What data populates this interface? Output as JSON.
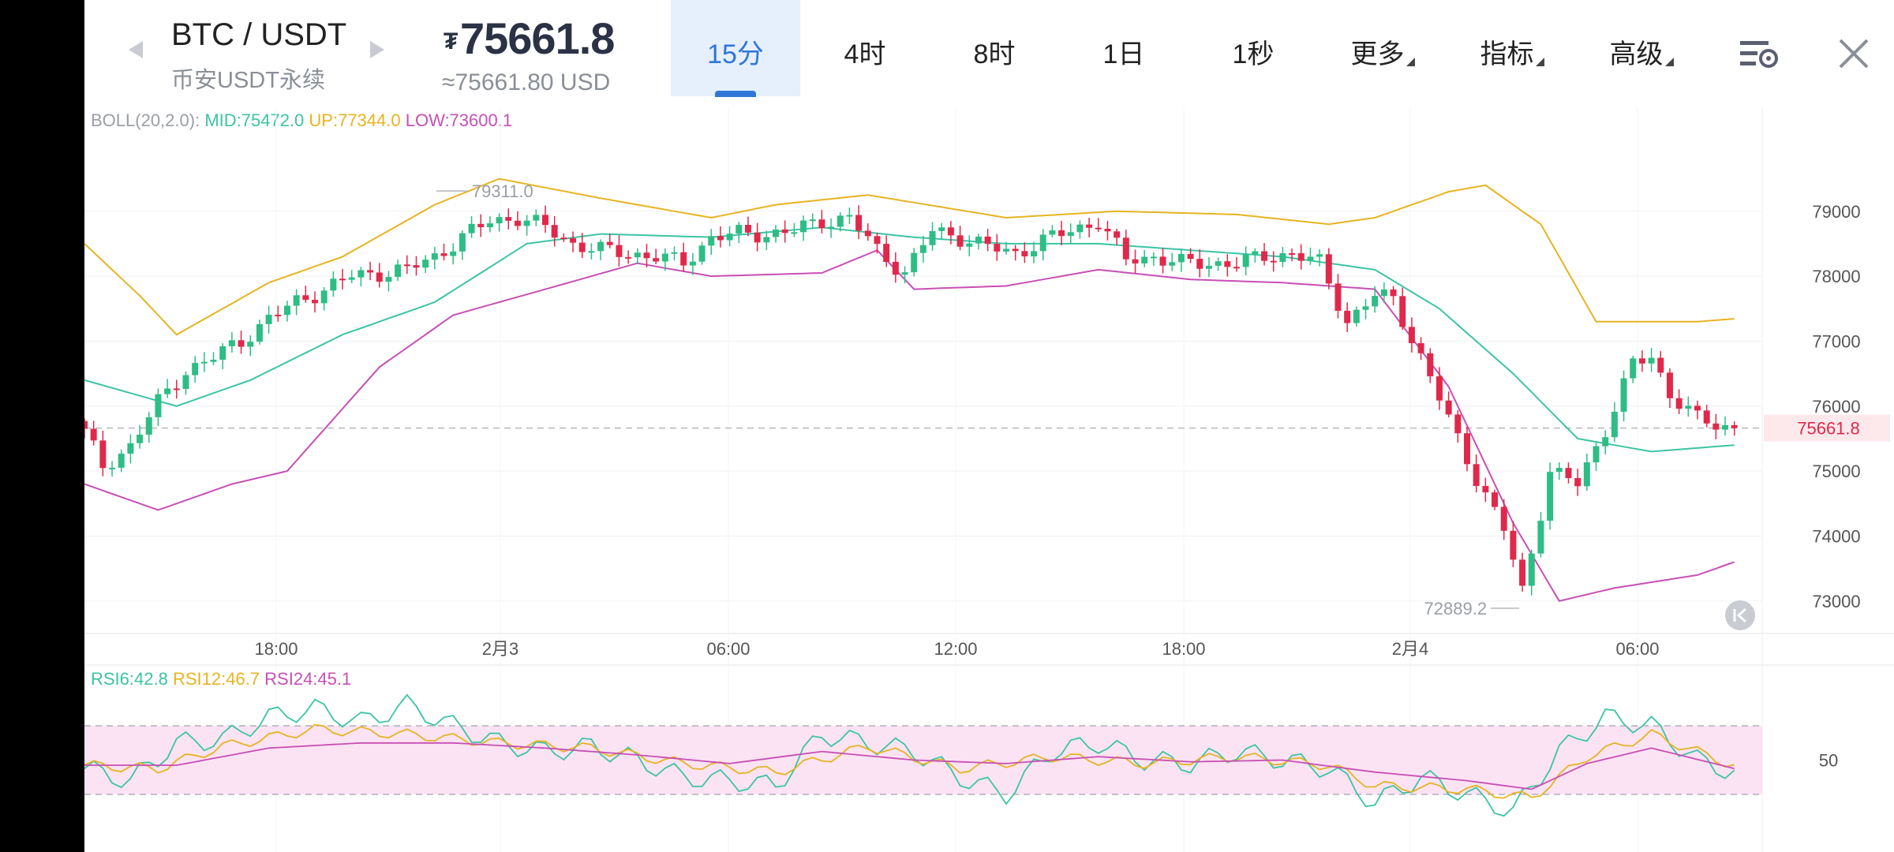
{
  "header": {
    "symbol": "BTC / USDT",
    "subtitle": "币安USDT永续",
    "price_symbol": "₮",
    "price": "75661.8",
    "price_usd": "≈75661.80 USD"
  },
  "tabs": [
    {
      "label": "15分",
      "active": true
    },
    {
      "label": "4时",
      "active": false
    },
    {
      "label": "8时",
      "active": false
    },
    {
      "label": "1日",
      "active": false
    },
    {
      "label": "1秒",
      "active": false
    },
    {
      "label": "更多",
      "active": false,
      "dropdown": true
    },
    {
      "label": "指标",
      "active": false,
      "dropdown": true
    },
    {
      "label": "高级",
      "active": false,
      "dropdown": true
    }
  ],
  "icons": {
    "settings": "chart-settings-icon",
    "close": "close-icon",
    "scroll_latest": "scroll-to-latest-icon"
  },
  "colors": {
    "up": "#2ebd85",
    "down": "#e0294a",
    "mid": "#3cc4a4",
    "upper": "#e6b422",
    "lower": "#c84fb5",
    "accent": "#2f76d8"
  },
  "legends": {
    "boll": {
      "name": "BOLL(20,2.0):",
      "mid": "MID:75472.0",
      "up": "UP:77344.0",
      "low": "LOW:73600.1"
    },
    "rsi": {
      "r6": "RSI6:42.8",
      "r12": "RSI12:46.7",
      "r24": "RSI24:45.1"
    }
  },
  "chart_data": [
    {
      "type": "candlestick",
      "title": "",
      "interval": "15m",
      "ylim": [
        72500,
        80600
      ],
      "y_ticks": [
        "79000",
        "78000",
        "77000",
        "76000",
        "75000",
        "74000",
        "73000"
      ],
      "x_ticks": [
        "18:00",
        "2月3",
        "06:00",
        "12:00",
        "18:00",
        "2月4",
        "06:00"
      ],
      "last_price": "75661.8",
      "annotations": {
        "high": "79311.0",
        "low": "72889.2"
      },
      "close_anchors": [
        [
          0,
          75600
        ],
        [
          2,
          75050
        ],
        [
          5,
          75400
        ],
        [
          8,
          76050
        ],
        [
          11,
          76550
        ],
        [
          14,
          76750
        ],
        [
          17,
          77000
        ],
        [
          20,
          77350
        ],
        [
          23,
          77600
        ],
        [
          26,
          77800
        ],
        [
          29,
          78000
        ],
        [
          32,
          78050
        ],
        [
          35,
          78100
        ],
        [
          38,
          78300
        ],
        [
          41,
          78600
        ],
        [
          44,
          78850
        ],
        [
          47,
          78900
        ],
        [
          50,
          78750
        ],
        [
          53,
          78500
        ],
        [
          56,
          78400
        ],
        [
          59,
          78350
        ],
        [
          62,
          78300
        ],
        [
          65,
          78200
        ],
        [
          68,
          78600
        ],
        [
          71,
          78650
        ],
        [
          74,
          78650
        ],
        [
          77,
          78700
        ],
        [
          80,
          78850
        ],
        [
          83,
          78900
        ],
        [
          86,
          78400
        ],
        [
          89,
          78050
        ],
        [
          92,
          78700
        ],
        [
          95,
          78600
        ],
        [
          98,
          78450
        ],
        [
          101,
          78350
        ],
        [
          104,
          78550
        ],
        [
          107,
          78700
        ],
        [
          110,
          78850
        ],
        [
          113,
          78250
        ],
        [
          116,
          78300
        ],
        [
          119,
          78200
        ],
        [
          122,
          78200
        ],
        [
          125,
          78200
        ],
        [
          128,
          78300
        ],
        [
          131,
          78350
        ],
        [
          134,
          78200
        ],
        [
          137,
          77300
        ],
        [
          140,
          77700
        ],
        [
          142,
          77650
        ],
        [
          145,
          76750
        ],
        [
          148,
          75800
        ],
        [
          151,
          74900
        ],
        [
          154,
          74100
        ],
        [
          156,
          73150
        ],
        [
          159,
          75000
        ],
        [
          162,
          74800
        ],
        [
          165,
          75650
        ],
        [
          168,
          76650
        ],
        [
          170,
          76750
        ],
        [
          172,
          76200
        ],
        [
          175,
          75800
        ],
        [
          177,
          75700
        ],
        [
          179,
          75661.8
        ]
      ],
      "boll_anchors": {
        "mid": [
          [
            0,
            76400
          ],
          [
            10,
            76000
          ],
          [
            18,
            76400
          ],
          [
            28,
            77100
          ],
          [
            38,
            77600
          ],
          [
            48,
            78500
          ],
          [
            56,
            78650
          ],
          [
            68,
            78600
          ],
          [
            80,
            78750
          ],
          [
            90,
            78600
          ],
          [
            100,
            78500
          ],
          [
            110,
            78500
          ],
          [
            120,
            78400
          ],
          [
            130,
            78300
          ],
          [
            140,
            78100
          ],
          [
            147,
            77500
          ],
          [
            155,
            76500
          ],
          [
            162,
            75500
          ],
          [
            170,
            75300
          ],
          [
            179,
            75400
          ]
        ],
        "upper": [
          [
            0,
            78500
          ],
          [
            6,
            77700
          ],
          [
            10,
            77100
          ],
          [
            20,
            77900
          ],
          [
            28,
            78300
          ],
          [
            38,
            79100
          ],
          [
            45,
            79500
          ],
          [
            56,
            79200
          ],
          [
            68,
            78900
          ],
          [
            75,
            79100
          ],
          [
            85,
            79250
          ],
          [
            100,
            78900
          ],
          [
            112,
            79000
          ],
          [
            125,
            78950
          ],
          [
            135,
            78800
          ],
          [
            140,
            78900
          ],
          [
            148,
            79300
          ],
          [
            152,
            79400
          ],
          [
            158,
            78800
          ],
          [
            164,
            77300
          ],
          [
            175,
            77300
          ],
          [
            179,
            77344
          ]
        ],
        "lower": [
          [
            0,
            74800
          ],
          [
            8,
            74400
          ],
          [
            16,
            74800
          ],
          [
            22,
            75000
          ],
          [
            32,
            76600
          ],
          [
            40,
            77400
          ],
          [
            50,
            77800
          ],
          [
            60,
            78200
          ],
          [
            68,
            78000
          ],
          [
            80,
            78050
          ],
          [
            86,
            78400
          ],
          [
            90,
            77800
          ],
          [
            100,
            77850
          ],
          [
            110,
            78100
          ],
          [
            120,
            77950
          ],
          [
            130,
            77900
          ],
          [
            140,
            77800
          ],
          [
            148,
            76300
          ],
          [
            155,
            74200
          ],
          [
            160,
            73000
          ],
          [
            166,
            73200
          ],
          [
            175,
            73400
          ],
          [
            179,
            73600
          ]
        ]
      }
    },
    {
      "type": "line",
      "title": "",
      "ylim": [
        0,
        100
      ],
      "y_ticks": [
        "50"
      ],
      "band": [
        30,
        70
      ],
      "series": [
        {
          "name": "RSI6",
          "anchors": [
            [
              0,
              45
            ],
            [
              5,
              38
            ],
            [
              10,
              60
            ],
            [
              15,
              62
            ],
            [
              20,
              75
            ],
            [
              25,
              80
            ],
            [
              30,
              72
            ],
            [
              35,
              82
            ],
            [
              40,
              70
            ],
            [
              45,
              60
            ],
            [
              50,
              55
            ],
            [
              55,
              58
            ],
            [
              60,
              50
            ],
            [
              65,
              40
            ],
            [
              70,
              38
            ],
            [
              75,
              35
            ],
            [
              80,
              65
            ],
            [
              85,
              60
            ],
            [
              90,
              55
            ],
            [
              95,
              40
            ],
            [
              100,
              30
            ],
            [
              105,
              55
            ],
            [
              110,
              60
            ],
            [
              115,
              50
            ],
            [
              120,
              48
            ],
            [
              125,
              55
            ],
            [
              130,
              50
            ],
            [
              135,
              45
            ],
            [
              140,
              25
            ],
            [
              145,
              40
            ],
            [
              150,
              30
            ],
            [
              155,
              20
            ],
            [
              160,
              55
            ],
            [
              165,
              75
            ],
            [
              170,
              70
            ],
            [
              175,
              50
            ],
            [
              179,
              42.8
            ]
          ]
        },
        {
          "name": "RSI12",
          "anchors": [
            [
              0,
              47
            ],
            [
              8,
              45
            ],
            [
              15,
              58
            ],
            [
              25,
              68
            ],
            [
              35,
              65
            ],
            [
              45,
              60
            ],
            [
              55,
              57
            ],
            [
              65,
              48
            ],
            [
              75,
              43
            ],
            [
              85,
              58
            ],
            [
              95,
              45
            ],
            [
              105,
              52
            ],
            [
              115,
              48
            ],
            [
              125,
              52
            ],
            [
              135,
              47
            ],
            [
              140,
              35
            ],
            [
              150,
              33
            ],
            [
              157,
              28
            ],
            [
              163,
              52
            ],
            [
              170,
              65
            ],
            [
              179,
              46.7
            ]
          ]
        },
        {
          "name": "RSI24",
          "anchors": [
            [
              0,
              47
            ],
            [
              10,
              47
            ],
            [
              20,
              57
            ],
            [
              30,
              60
            ],
            [
              40,
              60
            ],
            [
              50,
              57
            ],
            [
              60,
              53
            ],
            [
              70,
              48
            ],
            [
              80,
              55
            ],
            [
              90,
              50
            ],
            [
              100,
              48
            ],
            [
              110,
              52
            ],
            [
              120,
              49
            ],
            [
              130,
              50
            ],
            [
              140,
              43
            ],
            [
              150,
              38
            ],
            [
              157,
              33
            ],
            [
              163,
              48
            ],
            [
              170,
              57
            ],
            [
              179,
              45.1
            ]
          ]
        }
      ]
    }
  ]
}
